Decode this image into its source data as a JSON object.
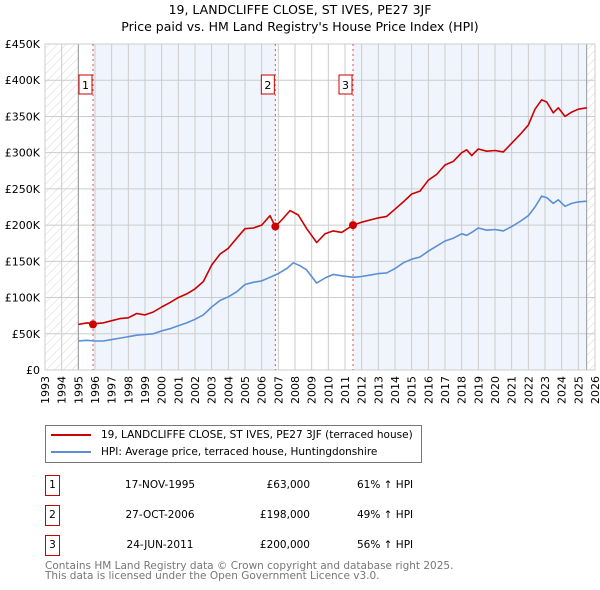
{
  "chart_data": {
    "type": "line",
    "title": "19, LANDCLIFFE CLOSE, ST IVES, PE27 3JF",
    "subtitle": "Price paid vs. HM Land Registry's House Price Index (HPI)",
    "xlim": [
      1993,
      2026
    ],
    "ylim": [
      0,
      450000
    ],
    "grid": true,
    "x_ticks": [
      "1993",
      "1994",
      "1995",
      "1996",
      "1997",
      "1998",
      "1999",
      "2000",
      "2001",
      "2002",
      "2003",
      "2004",
      "2005",
      "2006",
      "2007",
      "2008",
      "2009",
      "2010",
      "2011",
      "2012",
      "2013",
      "2014",
      "2015",
      "2016",
      "2017",
      "2018",
      "2019",
      "2020",
      "2021",
      "2022",
      "2023",
      "2024",
      "2025",
      "2026"
    ],
    "y_ticks": [
      {
        "value": 0,
        "label": "£0"
      },
      {
        "value": 50000,
        "label": "£50K"
      },
      {
        "value": 100000,
        "label": "£100K"
      },
      {
        "value": 150000,
        "label": "£150K"
      },
      {
        "value": 200000,
        "label": "£200K"
      },
      {
        "value": 250000,
        "label": "£250K"
      },
      {
        "value": 300000,
        "label": "£300K"
      },
      {
        "value": 350000,
        "label": "£350K"
      },
      {
        "value": 400000,
        "label": "£400K"
      },
      {
        "value": 450000,
        "label": "£450K"
      }
    ],
    "data_range": [
      1995,
      2025.5
    ],
    "series": [
      {
        "name": "19, LANDCLIFFE CLOSE, ST IVES, PE27 3JF (terraced house)",
        "color": "#cc0000",
        "x": [
          1995,
          1995.5,
          1996,
          1996.5,
          1997,
          1997.5,
          1998,
          1998.5,
          1999,
          1999.5,
          2000,
          2000.5,
          2001,
          2001.5,
          2002,
          2002.5,
          2003,
          2003.5,
          2004,
          2004.5,
          2005,
          2005.5,
          2006,
          2006.5,
          2006.82,
          2007.2,
          2007.7,
          2008.2,
          2008.7,
          2009.3,
          2009.8,
          2010.3,
          2010.8,
          2011.48,
          2012,
          2012.5,
          2013,
          2013.5,
          2014,
          2014.5,
          2015,
          2015.5,
          2016,
          2016.5,
          2017,
          2017.5,
          2018,
          2018.3,
          2018.6,
          2019,
          2019.5,
          2020,
          2020.5,
          2021,
          2021.5,
          2022,
          2022.4,
          2022.8,
          2023.1,
          2023.5,
          2023.8,
          2024.2,
          2024.6,
          2025,
          2025.5
        ],
        "y": [
          63000,
          65000,
          64000,
          65000,
          68000,
          71000,
          72000,
          78000,
          76000,
          80000,
          87000,
          93000,
          100000,
          105000,
          112000,
          122000,
          145000,
          160000,
          168000,
          182000,
          195000,
          196000,
          200000,
          213000,
          198000,
          207000,
          220000,
          214000,
          195000,
          176000,
          188000,
          192000,
          190000,
          200000,
          204000,
          207000,
          210000,
          212000,
          222000,
          232000,
          243000,
          247000,
          262000,
          270000,
          283000,
          288000,
          300000,
          304000,
          296000,
          305000,
          302000,
          303000,
          301000,
          313000,
          325000,
          338000,
          360000,
          373000,
          370000,
          355000,
          362000,
          350000,
          356000,
          360000,
          362000
        ]
      },
      {
        "name": "HPI: Average price, terraced house, Huntingdonshire",
        "color": "#5b8fd4",
        "x": [
          1995,
          1995.5,
          1996,
          1996.5,
          1997,
          1997.5,
          1998,
          1998.5,
          1999,
          1999.5,
          2000,
          2000.5,
          2001,
          2001.5,
          2002,
          2002.5,
          2003,
          2003.5,
          2004,
          2004.5,
          2005,
          2005.5,
          2006,
          2006.5,
          2007,
          2007.5,
          2007.9,
          2008.3,
          2008.7,
          2009.3,
          2009.8,
          2010.3,
          2010.8,
          2011.5,
          2012,
          2012.5,
          2013,
          2013.5,
          2014,
          2014.5,
          2015,
          2015.5,
          2016,
          2016.5,
          2017,
          2017.5,
          2018,
          2018.3,
          2018.6,
          2019,
          2019.5,
          2020,
          2020.5,
          2021,
          2021.5,
          2022,
          2022.4,
          2022.8,
          2023.1,
          2023.5,
          2023.8,
          2024.2,
          2024.6,
          2025,
          2025.5
        ],
        "y": [
          40000,
          41000,
          40000,
          40000,
          42000,
          44000,
          46000,
          48000,
          49000,
          50000,
          54000,
          57000,
          61000,
          65000,
          70000,
          76000,
          87000,
          96000,
          101000,
          108000,
          118000,
          121000,
          123000,
          128000,
          133000,
          140000,
          148000,
          144000,
          138000,
          120000,
          127000,
          132000,
          130000,
          128000,
          129000,
          131000,
          133000,
          134000,
          140000,
          148000,
          153000,
          156000,
          164000,
          171000,
          178000,
          182000,
          188000,
          186000,
          190000,
          196000,
          193000,
          194000,
          192000,
          198000,
          205000,
          213000,
          225000,
          240000,
          238000,
          230000,
          235000,
          226000,
          230000,
          232000,
          233000
        ]
      }
    ],
    "sales": [
      {
        "id": "1",
        "x": 1995.88,
        "price": 63000,
        "date": "17-NOV-1995",
        "price_label": "£63,000",
        "hpi_label": "61% ↑ HPI"
      },
      {
        "id": "2",
        "x": 2006.82,
        "price": 198000,
        "date": "27-OCT-2006",
        "price_label": "£198,000",
        "hpi_label": "49% ↑ HPI"
      },
      {
        "id": "3",
        "x": 2011.48,
        "price": 200000,
        "date": "24-JUN-2011",
        "price_label": "£200,000",
        "hpi_label": "56% ↑ HPI"
      }
    ]
  },
  "legend": {
    "items": [
      {
        "label": "19, LANDCLIFFE CLOSE, ST IVES, PE27 3JF (terraced house)",
        "color": "#cc0000"
      },
      {
        "label": "HPI: Average price, terraced house, Huntingdonshire",
        "color": "#5b8fd4"
      }
    ]
  },
  "footer": {
    "line1": "Contains HM Land Registry data © Crown copyright and database right 2025.",
    "line2": "This data is licensed under the Open Government Licence v3.0."
  }
}
